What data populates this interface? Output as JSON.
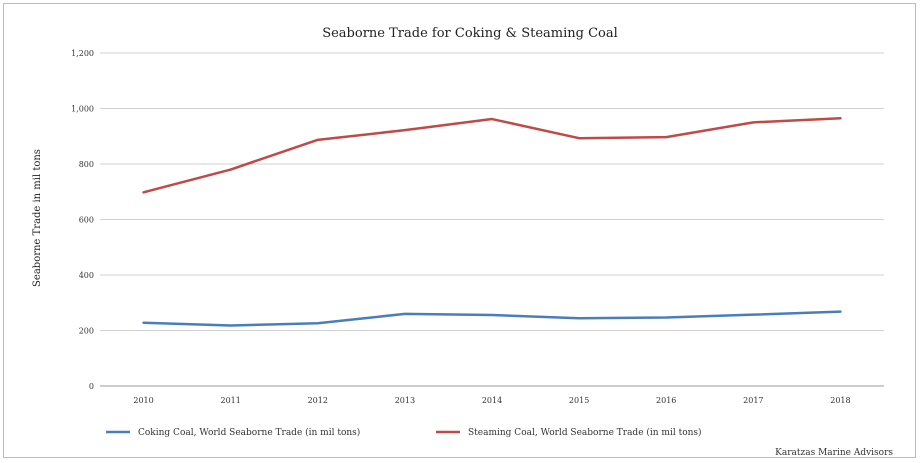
{
  "chart_data": {
    "type": "line",
    "title": "Seaborne Trade for Coking & Steaming Coal",
    "xlabel": "",
    "ylabel": "Seaborne Trade in mil tons",
    "categories": [
      "2010",
      "2011",
      "2012",
      "2013",
      "2014",
      "2015",
      "2016",
      "2017",
      "2018"
    ],
    "ylim": [
      0,
      1200
    ],
    "yticks": [
      0,
      200,
      400,
      600,
      800,
      1000,
      1200
    ],
    "ytick_labels": [
      "0",
      "200",
      "400",
      "600",
      "800",
      "1,000",
      "1,200"
    ],
    "grid": true,
    "legend_position": "bottom",
    "series": [
      {
        "name": "Coking Coal, World Seaborne Trade (in mil tons)",
        "color": "#4a7ebb",
        "values": [
          228,
          218,
          226,
          260,
          256,
          244,
          247,
          257,
          268
        ]
      },
      {
        "name": "Steaming Coal, World Seaborne Trade (in mil tons)",
        "color": "#be4b48",
        "values": [
          698,
          780,
          887,
          922,
          962,
          893,
          897,
          950,
          965
        ]
      }
    ],
    "source": "Karatzas Marine Advisors"
  }
}
